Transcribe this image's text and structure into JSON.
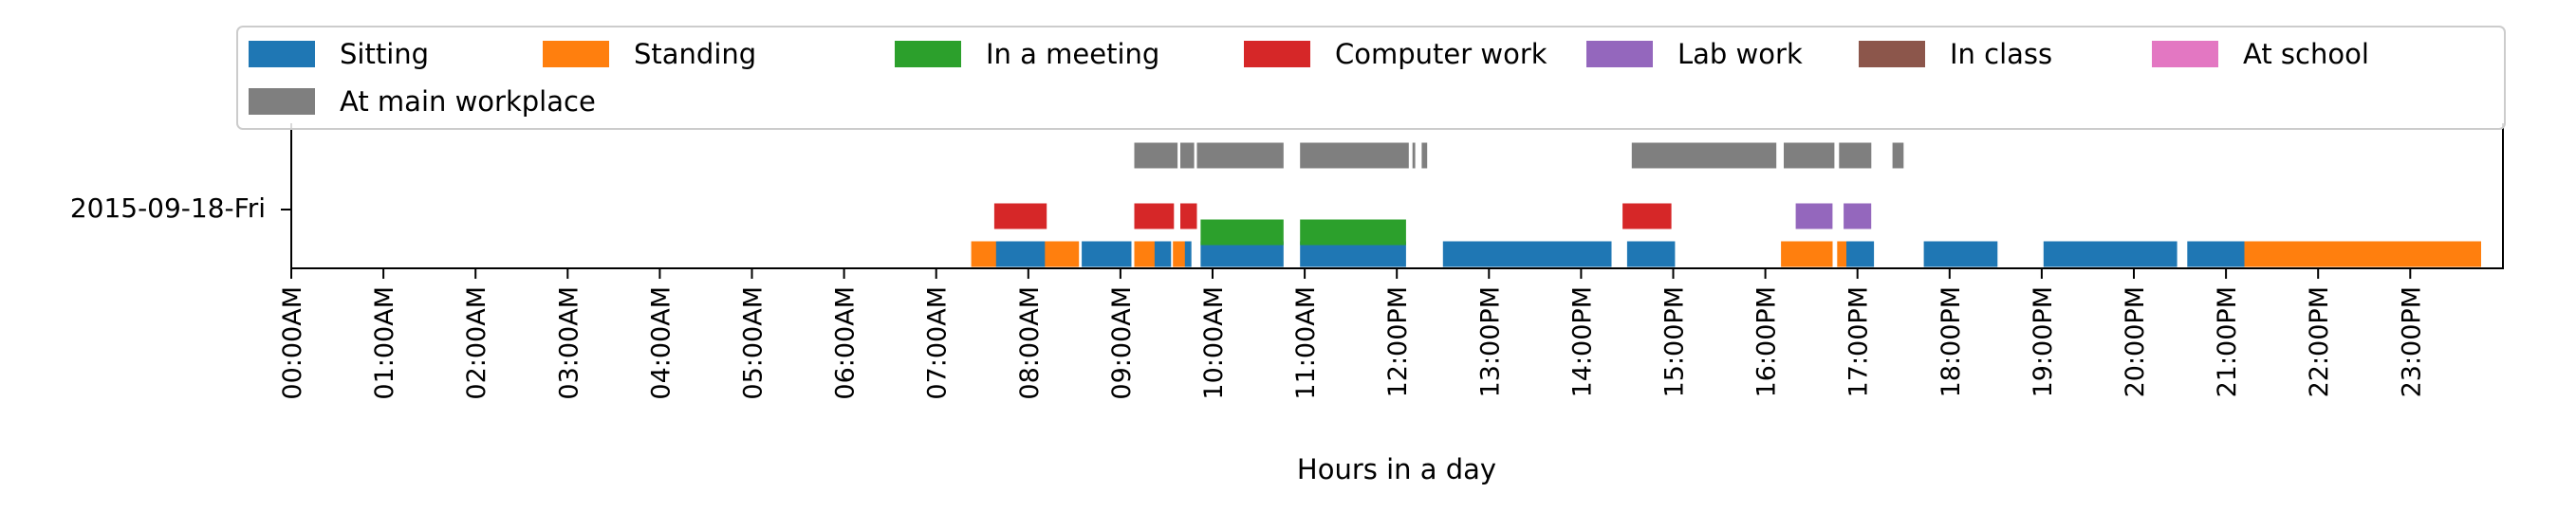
{
  "chart_data": {
    "type": "timeline",
    "xlabel": "Hours in a day",
    "xlim": [
      0,
      24
    ],
    "x_tick_labels": [
      "00:00AM",
      "01:00AM",
      "02:00AM",
      "03:00AM",
      "04:00AM",
      "05:00AM",
      "06:00AM",
      "07:00AM",
      "08:00AM",
      "09:00AM",
      "10:00AM",
      "11:00AM",
      "12:00PM",
      "13:00PM",
      "14:00PM",
      "15:00PM",
      "16:00PM",
      "17:00PM",
      "18:00PM",
      "19:00PM",
      "20:00PM",
      "21:00PM",
      "22:00PM",
      "23:00PM"
    ],
    "y_tick_labels": [
      "2015-09-18-Fri"
    ],
    "legend_placement": "top, full width, 7 columns",
    "series": [
      {
        "name": "Sitting",
        "color": "#1f77b4",
        "lane": 0,
        "intervals": [
          [
            7.63,
            8.2
          ],
          [
            8.58,
            9.12
          ],
          [
            9.35,
            9.55
          ],
          [
            9.65,
            9.77
          ],
          [
            9.87,
            10.77
          ],
          [
            10.95,
            12.1
          ],
          [
            12.5,
            14.33
          ],
          [
            14.5,
            15.02
          ],
          [
            16.33,
            16.45
          ],
          [
            16.5,
            16.63
          ],
          [
            16.88,
            17.18
          ],
          [
            17.72,
            18.52
          ],
          [
            19.02,
            20.47
          ],
          [
            20.58,
            21.2
          ]
        ]
      },
      {
        "name": "Standing",
        "color": "#ff7f0e",
        "lane": 0,
        "intervals": [
          [
            7.38,
            7.65
          ],
          [
            8.18,
            8.55
          ],
          [
            9.15,
            9.37
          ],
          [
            9.57,
            9.7
          ],
          [
            16.17,
            16.73
          ],
          [
            16.78,
            16.88
          ],
          [
            21.2,
            23.77
          ]
        ]
      },
      {
        "name": "In a meeting",
        "color": "#2ca02c",
        "lane": 1,
        "intervals": [
          [
            9.87,
            10.77
          ],
          [
            10.95,
            12.1
          ]
        ]
      },
      {
        "name": "Computer work",
        "color": "#d62728",
        "lane": 2,
        "intervals": [
          [
            7.63,
            8.2
          ],
          [
            9.15,
            9.58
          ],
          [
            9.65,
            9.83
          ],
          [
            14.45,
            14.98
          ],
          [
            16.5,
            16.63
          ]
        ]
      },
      {
        "name": "Lab work",
        "color": "#9467bd",
        "lane": 2,
        "intervals": [
          [
            16.33,
            16.73
          ],
          [
            16.85,
            17.15
          ]
        ]
      },
      {
        "name": "In class",
        "color": "#8c564b",
        "lane": 3,
        "intervals": []
      },
      {
        "name": "At school",
        "color": "#e377c2",
        "lane": 3,
        "intervals": []
      },
      {
        "name": "At main workplace",
        "color": "#7f7f7f",
        "lane": 3,
        "intervals": [
          [
            9.15,
            9.62
          ],
          [
            9.65,
            9.8
          ],
          [
            9.83,
            10.77
          ],
          [
            10.95,
            12.13
          ],
          [
            12.17,
            12.2
          ],
          [
            12.27,
            12.33
          ],
          [
            14.55,
            16.12
          ],
          [
            16.2,
            16.75
          ],
          [
            16.8,
            17.15
          ],
          [
            17.38,
            17.5
          ]
        ]
      }
    ]
  }
}
